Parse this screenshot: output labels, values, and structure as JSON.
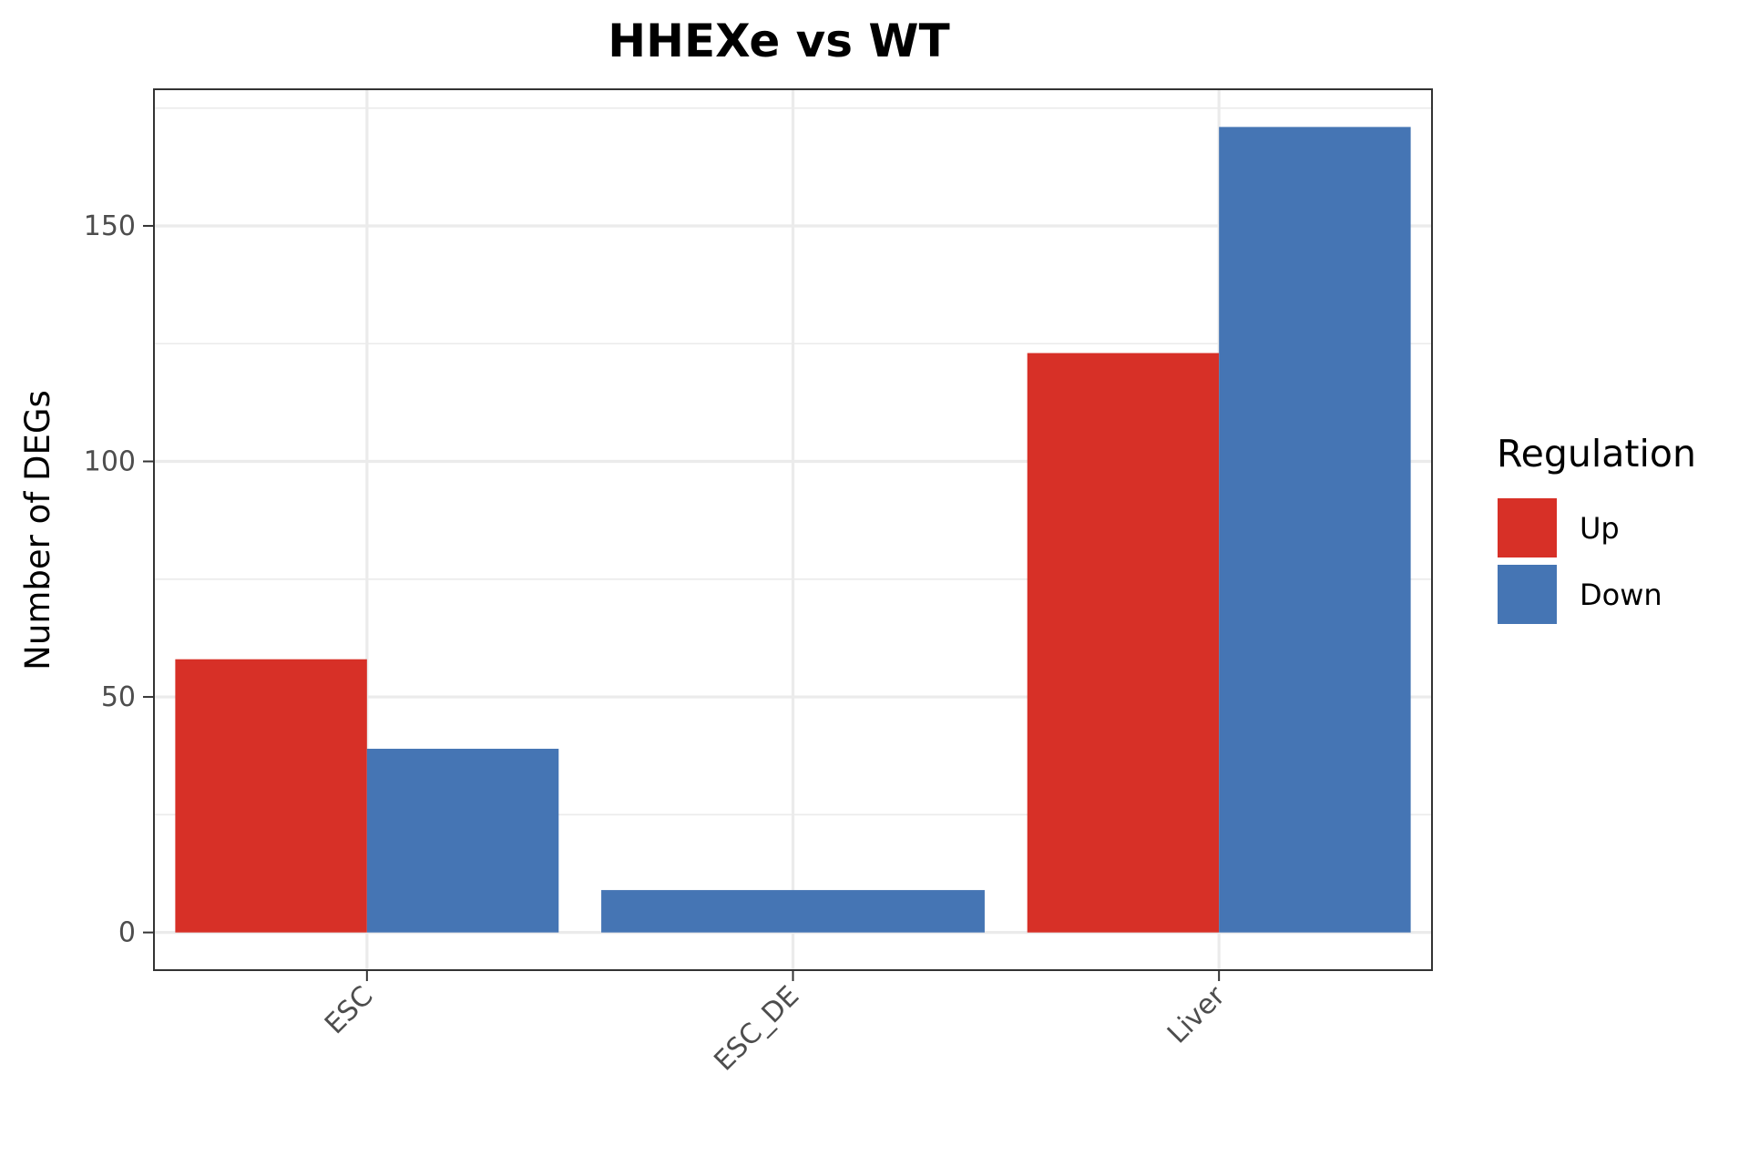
{
  "chart_data": {
    "type": "bar",
    "title": "HHEXe vs WT",
    "xlabel": "",
    "ylabel": "Number of DEGs",
    "categories": [
      "ESC",
      "ESC_DE",
      "Liver"
    ],
    "series": [
      {
        "name": "Up",
        "values": [
          58,
          0,
          123
        ],
        "color": "#d73027"
      },
      {
        "name": "Down",
        "values": [
          39,
          9,
          171
        ],
        "color": "#4575b4"
      }
    ],
    "yticks": [
      0,
      50,
      100,
      150
    ],
    "ylim": [
      -8,
      179
    ],
    "grid": true,
    "legend": {
      "title": "Regulation",
      "position": "right"
    }
  }
}
